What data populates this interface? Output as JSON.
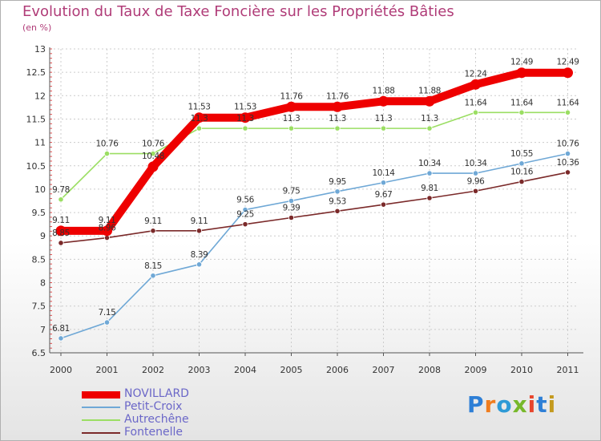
{
  "title": "Evolution du Taux de Taxe Foncière sur les Propriétés Bâties",
  "subtitle": "(en %)",
  "logo": {
    "letters": [
      "P",
      "r",
      "o",
      "x",
      "i",
      "t",
      "i"
    ]
  },
  "chart_data": {
    "type": "line",
    "title": "Evolution du Taux de Taxe Foncière sur les Propriétés Bâties",
    "ylabel": "(en %)",
    "xlabel": "",
    "ylim": [
      6.5,
      13
    ],
    "yticks": [
      "6.5",
      "7",
      "7.5",
      "8",
      "8.5",
      "9",
      "9.5",
      "10",
      "10.5",
      "11",
      "11.5",
      "12",
      "12.5",
      "13"
    ],
    "categories": [
      "2000",
      "2001",
      "2002",
      "2003",
      "2004",
      "2005",
      "2006",
      "2007",
      "2008",
      "2009",
      "2010",
      "2011"
    ],
    "legend_position": "bottom-left",
    "series": [
      {
        "name": "NOVILLARD",
        "color": "#ee0000",
        "values": [
          9.11,
          9.11,
          10.48,
          11.53,
          11.53,
          11.76,
          11.76,
          11.88,
          11.88,
          12.24,
          12.49,
          12.49
        ],
        "labels": [
          "9.11",
          "9.11",
          "10.48",
          "11.53",
          "11.53",
          "11.76",
          "11.76",
          "11.88",
          "11.88",
          "12.24",
          "12.49",
          "12.49"
        ]
      },
      {
        "name": "Petit-Croix",
        "color": "#6fa8d6",
        "values": [
          6.81,
          7.15,
          8.15,
          8.39,
          9.56,
          9.75,
          9.95,
          10.14,
          10.34,
          10.34,
          10.55,
          10.76
        ],
        "labels": [
          "6.81",
          "7.15",
          "8.15",
          "8.39",
          "9.56",
          "9.75",
          "9.95",
          "10.14",
          "10.34",
          "10.34",
          "10.55",
          "10.76"
        ]
      },
      {
        "name": "Autrechêne",
        "color": "#9bde63",
        "values": [
          9.78,
          10.76,
          10.76,
          11.3,
          11.3,
          11.3,
          11.3,
          11.3,
          11.3,
          11.64,
          11.64,
          11.64
        ],
        "labels": [
          "9.78",
          "10.76",
          "10.76",
          "11.3",
          "11.3",
          "11.3",
          "11.3",
          "11.3",
          "11.3",
          "11.64",
          "11.64",
          "11.64"
        ]
      },
      {
        "name": "Fontenelle",
        "color": "#7b2a2a",
        "values": [
          8.85,
          8.96,
          9.11,
          9.11,
          9.25,
          9.39,
          9.53,
          9.67,
          9.81,
          9.96,
          10.16,
          10.36
        ],
        "labels": [
          "8.85",
          "8.96",
          "9.11",
          "9.11",
          "9.25",
          "9.39",
          "9.53",
          "9.67",
          "9.81",
          "9.96",
          "10.16",
          "10.36"
        ]
      }
    ]
  }
}
